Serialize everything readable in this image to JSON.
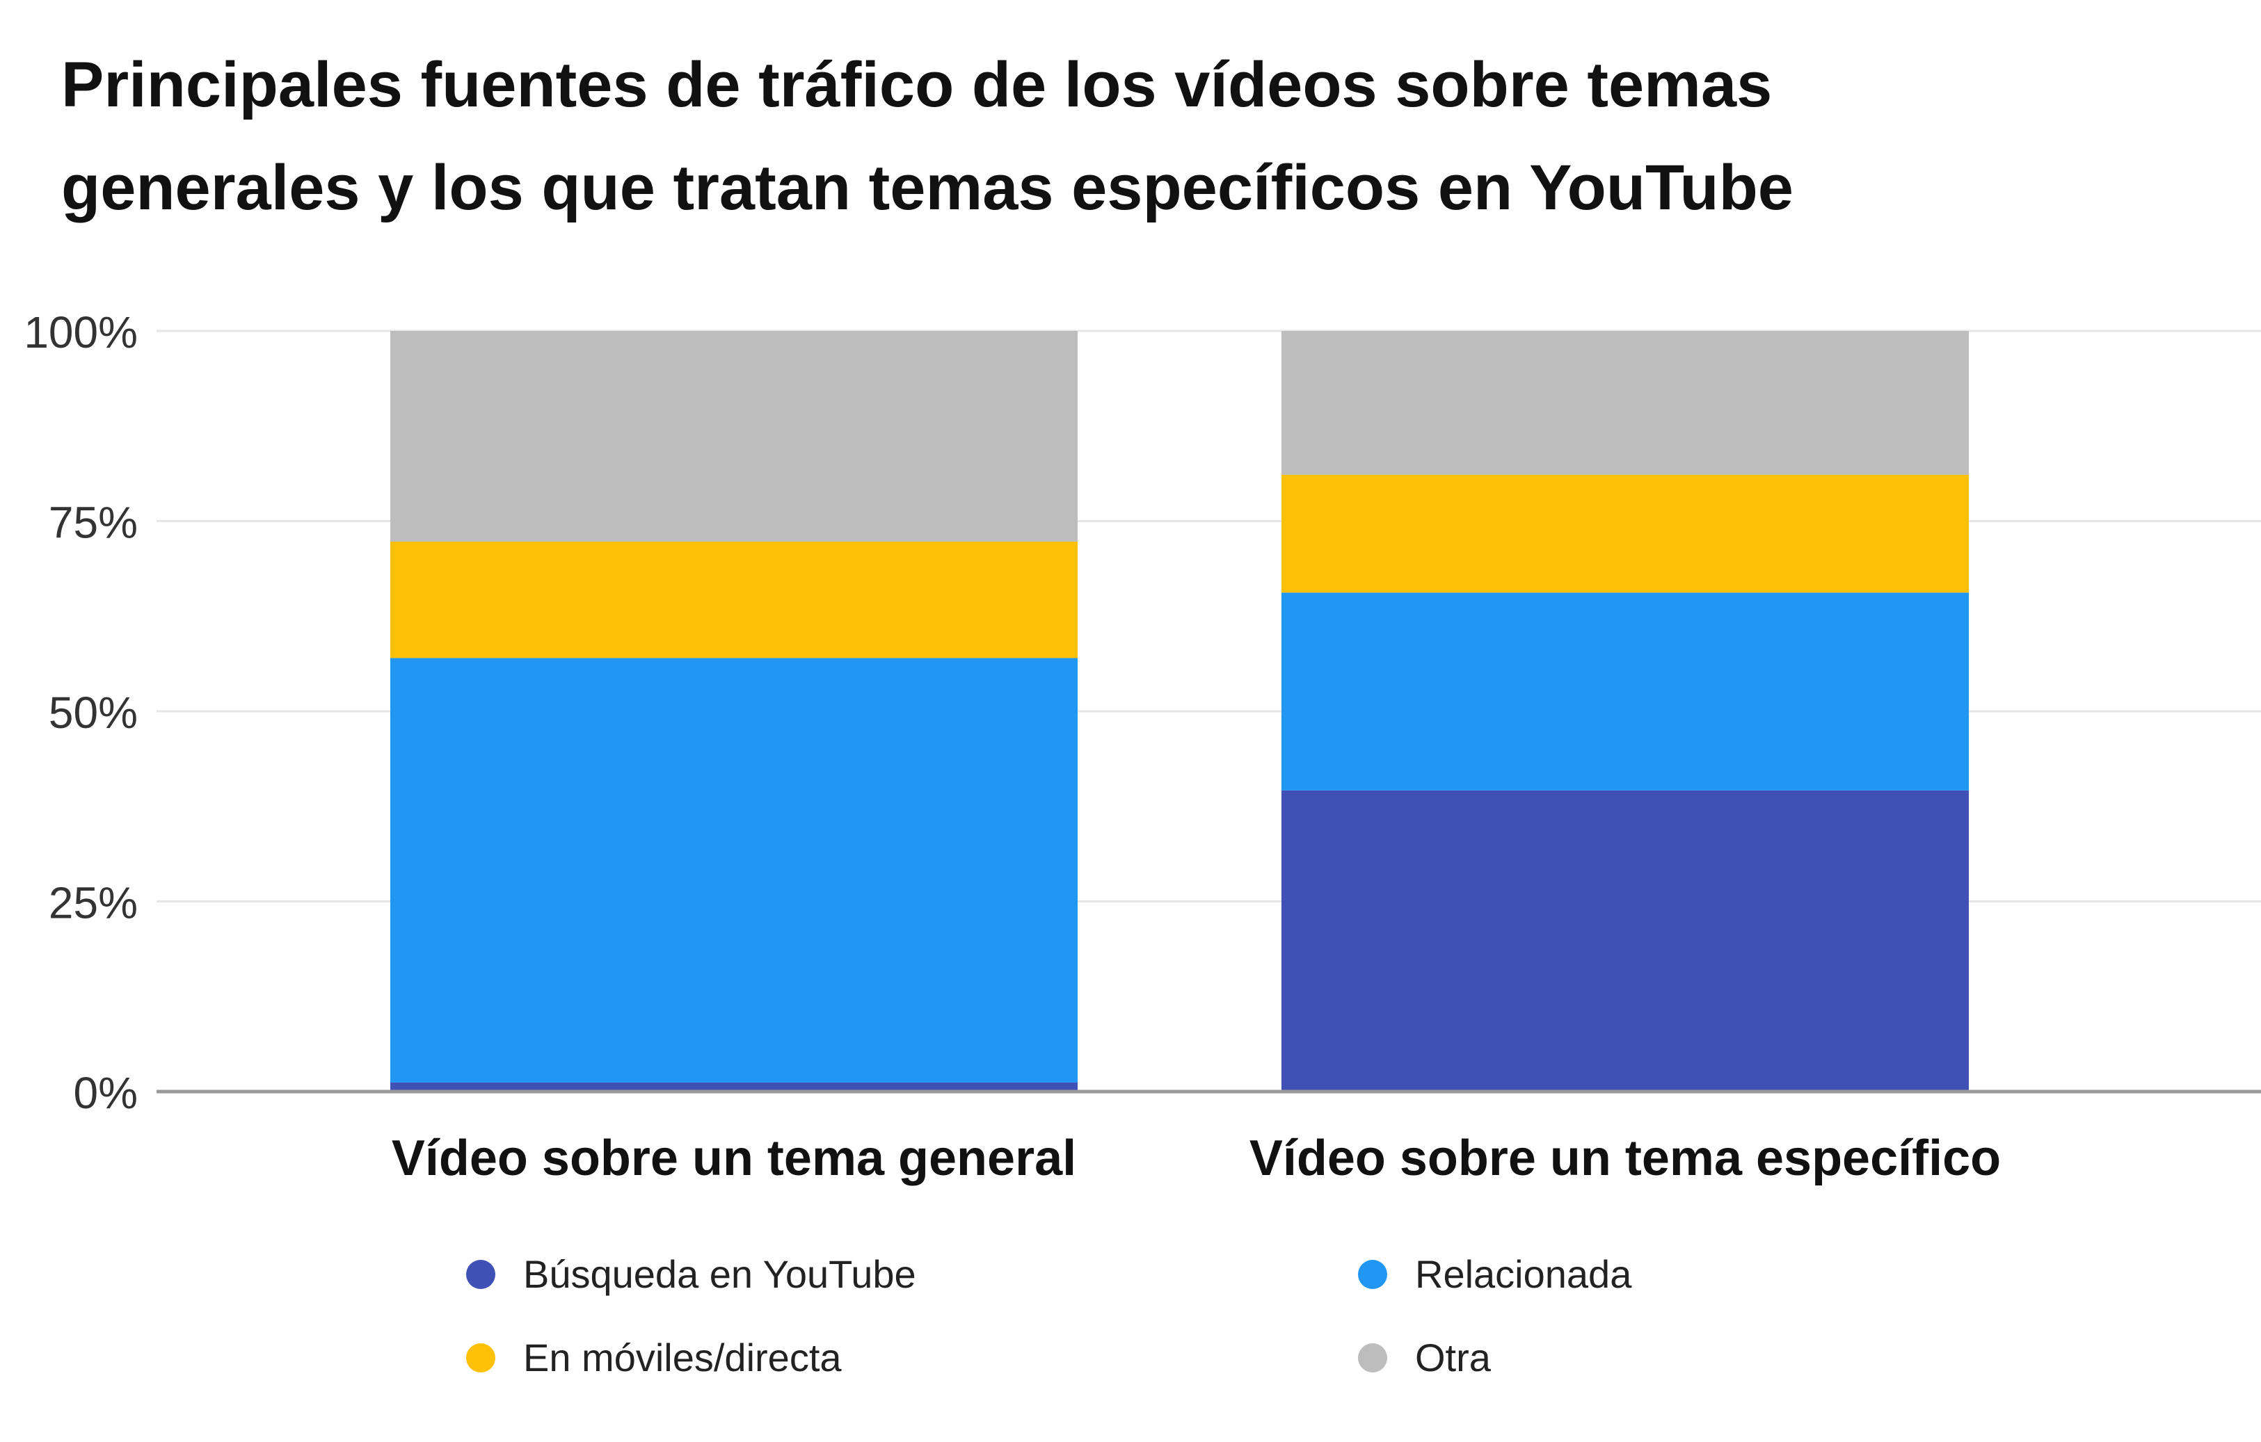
{
  "chart_data": {
    "type": "bar",
    "stacked": true,
    "title": "Principales fuentes de tráfico de los vídeos sobre temas generales y los que tratan temas específicos en YouTube",
    "title_lines": [
      "Principales fuentes de tráfico de los vídeos sobre temas",
      "generales y los que tratan temas específicos en YouTube"
    ],
    "categories": [
      "Vídeo sobre un tema general",
      "Vídeo sobre un tema específico"
    ],
    "ylim": [
      0,
      100
    ],
    "yticks": [
      0,
      25,
      50,
      75,
      100
    ],
    "ytick_labels": [
      "0%",
      "25%",
      "50%",
      "75%",
      "100%"
    ],
    "grid": true,
    "legend_position": "bottom",
    "series": [
      {
        "name": "Búsqueda en YouTube",
        "color": "#3F51B5",
        "values": [
          1.2,
          39.6
        ]
      },
      {
        "name": "Relacionada",
        "color": "#2196F3",
        "values": [
          55.8,
          26.0
        ]
      },
      {
        "name": "En móviles/directa",
        "color": "#FFC107",
        "values": [
          15.3,
          15.5
        ]
      },
      {
        "name": "Otra",
        "color": "#BDBDBD",
        "values": [
          27.7,
          18.9
        ]
      }
    ]
  }
}
